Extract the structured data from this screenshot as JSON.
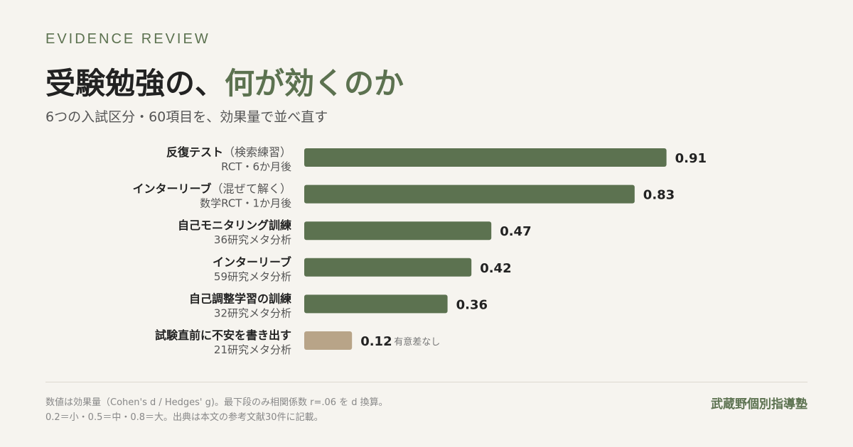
{
  "header": {
    "eyebrow": "EVIDENCE REVIEW",
    "title_main": "受験勉強の、",
    "title_accent": "何が効くのか",
    "subtitle": "6つの入試区分・60項目を、効果量で並べ直す"
  },
  "chart_data": {
    "type": "bar",
    "orientation": "horizontal",
    "xlim": [
      0,
      1
    ],
    "categories": [
      {
        "label": "反復テスト",
        "qualifier": "（検索練習）",
        "source": "RCT・6か月後",
        "value": 0.91,
        "value_label": "0.91",
        "note": "",
        "color": "#5c7250"
      },
      {
        "label": "インターリーブ",
        "qualifier": "（混ぜて解く）",
        "source": "数学RCT・1か月後",
        "value": 0.83,
        "value_label": "0.83",
        "note": "",
        "color": "#5c7250"
      },
      {
        "label": "自己モニタリング訓練",
        "qualifier": "",
        "source": "36研究メタ分析",
        "value": 0.47,
        "value_label": "0.47",
        "note": "",
        "color": "#5c7250"
      },
      {
        "label": "インターリーブ",
        "qualifier": "",
        "source": "59研究メタ分析",
        "value": 0.42,
        "value_label": "0.42",
        "note": "",
        "color": "#5c7250"
      },
      {
        "label": "自己調整学習の訓練",
        "qualifier": "",
        "source": "32研究メタ分析",
        "value": 0.36,
        "value_label": "0.36",
        "note": "",
        "color": "#5c7250"
      },
      {
        "label": "試験直前に不安を書き出す",
        "qualifier": "",
        "source": "21研究メタ分析",
        "value": 0.12,
        "value_label": "0.12",
        "note": "有意差なし",
        "color": "#b8a488"
      }
    ]
  },
  "footer": {
    "note_line1": "数値は効果量（Cohen's d / Hedges' g)。最下段のみ相関係数 r=.06 を d 換算。",
    "note_line2": "0.2＝小・0.5＝中・0.8＝大。出典は本文の参考文献30件に記載。",
    "brand": "武蔵野個別指導塾"
  }
}
